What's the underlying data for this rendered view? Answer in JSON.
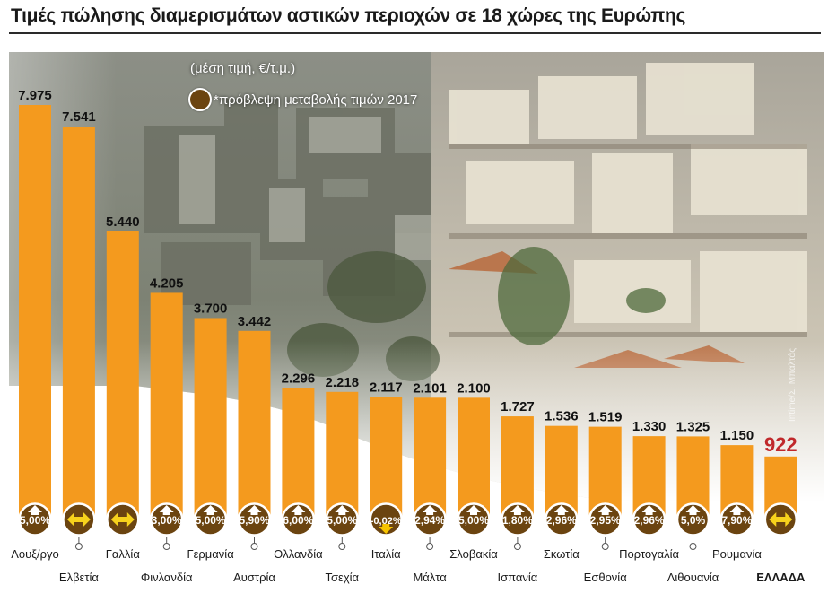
{
  "title": "Τιμές πώλησης διαμερισμάτων αστικών περιοχών σε 18 χώρες της Ευρώπης",
  "subtitle": "(μέση τιμή, €/τ.μ.)",
  "forecast_legend": "*πρόβλεψη μεταβολής τιμών 2017",
  "photo_credit": "Intime/Σ. Μπαλτάς",
  "colors": {
    "bar": "#F49A1E",
    "highlight_value": "#C0282B",
    "badge": "#6B4410",
    "arrow": "#FFFFFF",
    "arrow_down": "#F7C400",
    "sideways_arrow": "#F7D21C"
  },
  "chart_data": {
    "type": "bar",
    "title": "Τιμές πώλησης διαμερισμάτων αστικών περιοχών σε 18 χώρες της Ευρώπης",
    "ylabel": "(μέση τιμή, €/τ.μ.)",
    "categories": [
      "Λουξ/ργο",
      "Ελβετία",
      "Γαλλία",
      "Φινλανδία",
      "Γερμανία",
      "Αυστρία",
      "Ολλανδία",
      "Τσεχία",
      "Ιταλία",
      "Μάλτα",
      "Σλοβακία",
      "Ισπανία",
      "Σκωτία",
      "Εσθονία",
      "Πορτογαλία",
      "Λιθουανία",
      "Ρουμανία",
      "ΕΛΛΑΔΑ"
    ],
    "values": [
      7975,
      7541,
      5440,
      4205,
      3700,
      3442,
      2296,
      2218,
      2117,
      2101,
      2100,
      1727,
      1536,
      1519,
      1330,
      1325,
      1150,
      922
    ],
    "value_labels": [
      "7.975",
      "7.541",
      "5.440",
      "4.205",
      "3.700",
      "3.442",
      "2.296",
      "2.218",
      "2.117",
      "2.101",
      "2.100",
      "1.727",
      "1.536",
      "1.519",
      "1.330",
      "1.325",
      "1.150",
      "922"
    ],
    "forecast": [
      {
        "label": "5,00%",
        "dir": "up"
      },
      {
        "label": "",
        "dir": "flat"
      },
      {
        "label": "",
        "dir": "flat"
      },
      {
        "label": "3,00%",
        "dir": "up"
      },
      {
        "label": "5,00%",
        "dir": "up"
      },
      {
        "label": "5,90%",
        "dir": "up"
      },
      {
        "label": "6,00%",
        "dir": "up"
      },
      {
        "label": "5,00%",
        "dir": "up"
      },
      {
        "label": "-0,02%",
        "dir": "down"
      },
      {
        "label": "2,94%",
        "dir": "up"
      },
      {
        "label": "5,00%",
        "dir": "up"
      },
      {
        "label": "1,80%",
        "dir": "up"
      },
      {
        "label": "2,96%",
        "dir": "up"
      },
      {
        "label": "2,95%",
        "dir": "up"
      },
      {
        "label": "2,96%",
        "dir": "up"
      },
      {
        "label": "5,0%",
        "dir": "up"
      },
      {
        "label": "7,90%",
        "dir": "up"
      },
      {
        "label": "",
        "dir": "flat"
      }
    ],
    "highlight_index": 17,
    "ylim": [
      0,
      8000
    ],
    "grid": false,
    "legend": "top-left"
  }
}
